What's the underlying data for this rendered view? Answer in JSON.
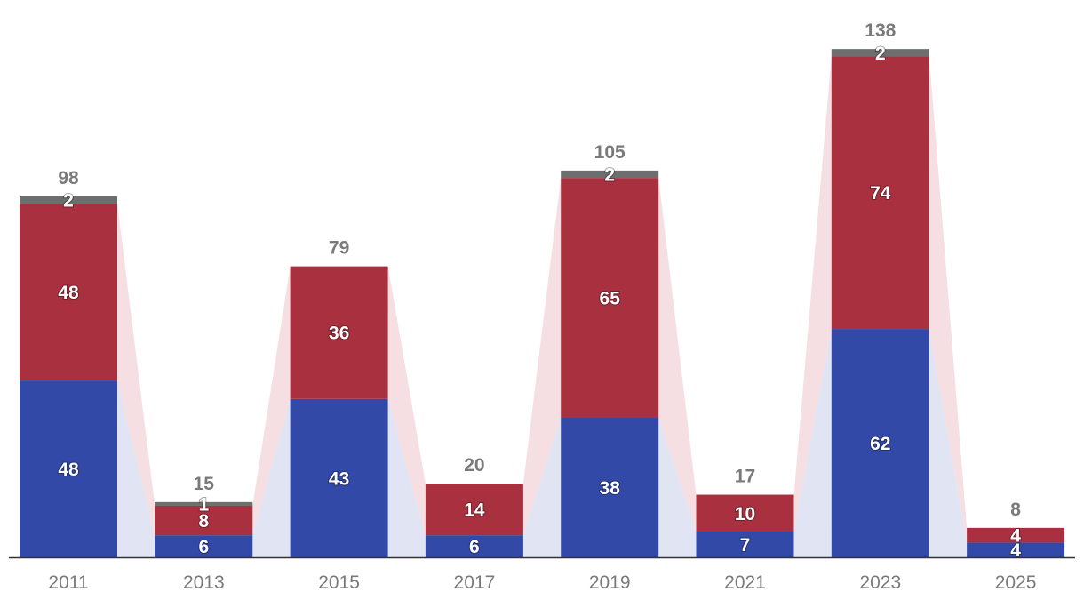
{
  "chart_data": {
    "type": "bar",
    "stacked": true,
    "categories": [
      "2011",
      "2013",
      "2015",
      "2017",
      "2019",
      "2021",
      "2023",
      "2025"
    ],
    "series": [
      {
        "values": [
          48,
          6,
          43,
          6,
          38,
          7,
          62,
          4
        ],
        "color": "#3349a8"
      },
      {
        "values": [
          48,
          8,
          36,
          14,
          65,
          10,
          74,
          4
        ],
        "color": "#a8303f"
      },
      {
        "values": [
          2,
          1,
          0,
          0,
          2,
          0,
          2,
          0
        ],
        "color": "#6e6e6e"
      }
    ],
    "totals": [
      98,
      15,
      79,
      20,
      105,
      17,
      138,
      8
    ],
    "connector_colors": [
      "#e1e4f3",
      "#f5dfe2"
    ],
    "axis_color": "#333333",
    "ylim": [
      0,
      140
    ],
    "grid": false,
    "legend": "none",
    "title": "",
    "xlabel": "",
    "ylabel": ""
  }
}
